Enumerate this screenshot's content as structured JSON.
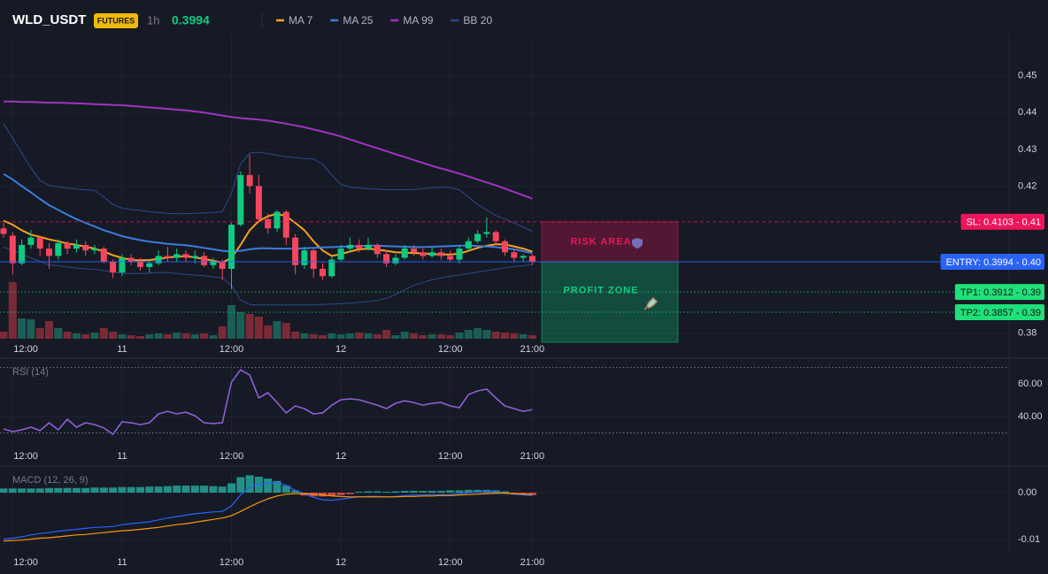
{
  "header": {
    "symbol": "WLD_USDT",
    "badge": "FUTURES",
    "interval": "1h",
    "price": 0.3994
  },
  "chart_data": [
    {
      "type": "candlestick",
      "categories": [
        null,
        "12:00",
        null,
        null,
        null,
        null,
        null,
        null,
        null,
        null,
        null,
        null,
        null,
        "11",
        null,
        null,
        null,
        null,
        null,
        null,
        null,
        null,
        null,
        null,
        null,
        "12:00",
        null,
        null,
        null,
        null,
        null,
        null,
        null,
        null,
        null,
        null,
        null,
        "12",
        null,
        null,
        null,
        null,
        null,
        null,
        null,
        null,
        null,
        null,
        null,
        "12:00",
        null,
        null,
        null,
        null,
        null,
        null,
        null,
        null,
        "21:00"
      ],
      "open": [
        0.4085,
        0.4065,
        0.399,
        0.404,
        0.406,
        0.403,
        0.401,
        0.4045,
        0.403,
        0.404,
        0.4025,
        0.403,
        0.3995,
        0.3965,
        0.4005,
        0.3995,
        0.398,
        0.399,
        0.401,
        0.4005,
        0.4015,
        0.4005,
        0.401,
        0.3985,
        0.3995,
        0.3975,
        0.4095,
        0.423,
        0.42,
        0.411,
        0.4085,
        0.413,
        0.406,
        0.3985,
        0.4025,
        0.3975,
        0.3955,
        0.4,
        0.403,
        0.404,
        0.403,
        0.404,
        0.4015,
        0.399,
        0.4005,
        0.403,
        0.402,
        0.401,
        0.402,
        0.401,
        0.4,
        0.403,
        0.405,
        0.407,
        0.4075,
        0.405,
        0.402,
        0.4005,
        0.401
      ],
      "high": [
        0.41,
        0.4075,
        0.4055,
        0.408,
        0.4065,
        0.4045,
        0.4055,
        0.405,
        0.4055,
        0.405,
        0.404,
        0.4035,
        0.4,
        0.4015,
        0.4015,
        0.4005,
        0.4,
        0.4025,
        0.4035,
        0.403,
        0.4025,
        0.4025,
        0.402,
        0.4005,
        0.4,
        0.41,
        0.424,
        0.4285,
        0.423,
        0.4125,
        0.4135,
        0.4135,
        0.407,
        0.4035,
        0.403,
        0.399,
        0.401,
        0.404,
        0.406,
        0.4055,
        0.406,
        0.4045,
        0.4025,
        0.4015,
        0.404,
        0.404,
        0.403,
        0.4035,
        0.403,
        0.4025,
        0.404,
        0.406,
        0.408,
        0.4115,
        0.408,
        0.4055,
        0.403,
        0.4015,
        0.4015
      ],
      "low": [
        0.406,
        0.396,
        0.3985,
        0.403,
        0.401,
        0.3975,
        0.4,
        0.4015,
        0.402,
        0.401,
        0.4015,
        0.399,
        0.395,
        0.3955,
        0.3985,
        0.397,
        0.3965,
        0.3985,
        0.3995,
        0.3995,
        0.3995,
        0.399,
        0.398,
        0.3975,
        0.3945,
        0.392,
        0.409,
        0.418,
        0.41,
        0.407,
        0.4075,
        0.404,
        0.396,
        0.3975,
        0.395,
        0.3945,
        0.395,
        0.3995,
        0.402,
        0.402,
        0.4025,
        0.4005,
        0.398,
        0.3985,
        0.4,
        0.401,
        0.4,
        0.4005,
        0.4,
        0.3995,
        0.399,
        0.4025,
        0.4045,
        0.406,
        0.404,
        0.401,
        0.3995,
        0.3995,
        0.3985
      ],
      "close": [
        0.407,
        0.399,
        0.404,
        0.406,
        0.403,
        0.401,
        0.4045,
        0.403,
        0.404,
        0.4025,
        0.403,
        0.3995,
        0.3965,
        0.4005,
        0.3995,
        0.398,
        0.399,
        0.401,
        0.4005,
        0.4015,
        0.4005,
        0.401,
        0.3985,
        0.3995,
        0.3975,
        0.4095,
        0.423,
        0.42,
        0.411,
        0.4085,
        0.413,
        0.406,
        0.3985,
        0.4025,
        0.3975,
        0.3955,
        0.4,
        0.403,
        0.404,
        0.403,
        0.404,
        0.4015,
        0.399,
        0.4005,
        0.403,
        0.402,
        0.401,
        0.402,
        0.401,
        0.4,
        0.403,
        0.405,
        0.407,
        0.4075,
        0.405,
        0.402,
        0.4005,
        0.401,
        0.3994
      ],
      "volume": [
        8,
        64,
        23,
        22,
        12,
        20,
        12,
        8,
        6,
        5,
        7,
        12,
        8,
        5,
        4,
        3,
        5,
        6,
        5,
        7,
        6,
        5,
        6,
        4,
        14,
        38,
        30,
        28,
        25,
        15,
        20,
        18,
        8,
        6,
        5,
        4,
        6,
        5,
        6,
        7,
        6,
        5,
        10,
        4,
        8,
        6,
        4,
        5,
        5,
        4,
        7,
        10,
        12,
        10,
        8,
        7,
        6,
        5,
        4
      ],
      "up_color": "#0ecb81",
      "down_color": "#f6465d",
      "volume_up_color": "#1b5e55",
      "volume_down_color": "#7a2a36",
      "series": [
        {
          "name": "MA 7",
          "color": "#f7a21b",
          "values": [
            0.4106,
            0.4095,
            0.408,
            0.4068,
            0.4062,
            0.4055,
            0.405,
            0.4044,
            0.404,
            0.4035,
            0.403,
            0.4022,
            0.4012,
            0.4005,
            0.3999,
            0.3998,
            0.3999,
            0.4002,
            0.4006,
            0.4008,
            0.401,
            0.4006,
            0.4002,
            0.3997,
            0.3992,
            0.4005,
            0.404,
            0.408,
            0.4105,
            0.4118,
            0.4125,
            0.4118,
            0.41,
            0.408,
            0.405,
            0.4025,
            0.401,
            0.4015,
            0.4022,
            0.4028,
            0.403,
            0.4027,
            0.4024,
            0.402,
            0.4019,
            0.4018,
            0.4017,
            0.4015,
            0.4014,
            0.4014,
            0.4016,
            0.4024,
            0.4032,
            0.4038,
            0.4042,
            0.4041,
            0.4036,
            0.403,
            0.4022
          ]
        },
        {
          "name": "MA 25",
          "color": "#3b7ddd",
          "values": [
            0.4233,
            0.4218,
            0.42,
            0.4183,
            0.4165,
            0.4148,
            0.4135,
            0.4122,
            0.411,
            0.41,
            0.409,
            0.408,
            0.4072,
            0.4064,
            0.4058,
            0.4053,
            0.4049,
            0.4046,
            0.4043,
            0.4041,
            0.4039,
            0.4036,
            0.4032,
            0.4028,
            0.4024,
            0.4022,
            0.4024,
            0.4028,
            0.4031,
            0.4031,
            0.403,
            0.403,
            0.403,
            0.4031,
            0.4032,
            0.4033,
            0.4034,
            0.4035,
            0.4036,
            0.4037,
            0.4038,
            0.4038,
            0.4037,
            0.4036,
            0.4035,
            0.4034,
            0.4034,
            0.4035,
            0.4036,
            0.4037,
            0.4038,
            0.4038,
            0.4037,
            0.4036,
            0.4034,
            0.4031,
            0.4028,
            0.4023,
            0.4018
          ]
        },
        {
          "name": "MA 99",
          "color": "#a232c2",
          "values": [
            0.443,
            0.443,
            0.4429,
            0.4429,
            0.4428,
            0.4427,
            0.4427,
            0.4426,
            0.4425,
            0.4424,
            0.4423,
            0.4422,
            0.4421,
            0.442,
            0.4418,
            0.4416,
            0.4414,
            0.4412,
            0.441,
            0.4408,
            0.4406,
            0.4403,
            0.44,
            0.4396,
            0.4392,
            0.4388,
            0.4385,
            0.4383,
            0.4381,
            0.4378,
            0.4374,
            0.437,
            0.4365,
            0.436,
            0.4354,
            0.4348,
            0.4342,
            0.4335,
            0.4327,
            0.4319,
            0.4311,
            0.4303,
            0.4295,
            0.4287,
            0.4279,
            0.4271,
            0.4263,
            0.4255,
            0.4248,
            0.4241,
            0.4234,
            0.4226,
            0.4218,
            0.421,
            0.4202,
            0.4193,
            0.4184,
            0.4175,
            0.4166
          ]
        },
        {
          "name": "BB 20",
          "color": "#2b4a8f",
          "upper": [
            0.437,
            0.433,
            0.429,
            0.425,
            0.4215,
            0.4202,
            0.4198,
            0.4195,
            0.4192,
            0.419,
            0.4188,
            0.417,
            0.415,
            0.414,
            0.4136,
            0.4134,
            0.413,
            0.4128,
            0.4126,
            0.4125,
            0.4125,
            0.4126,
            0.4127,
            0.4128,
            0.413,
            0.418,
            0.426,
            0.429,
            0.4292,
            0.4288,
            0.4284,
            0.428,
            0.4277,
            0.4275,
            0.4274,
            0.426,
            0.423,
            0.4205,
            0.4197,
            0.4195,
            0.4193,
            0.4192,
            0.419,
            0.419,
            0.419,
            0.4191,
            0.4193,
            0.4195,
            0.4197,
            0.4196,
            0.419,
            0.417,
            0.415,
            0.4135,
            0.412,
            0.411,
            0.41,
            0.4088,
            0.4077
          ],
          "lower": [
            0.4034,
            0.4025,
            0.4015,
            0.4005,
            0.3995,
            0.3986,
            0.3983,
            0.398,
            0.3977,
            0.3975,
            0.3974,
            0.397,
            0.3966,
            0.3963,
            0.3962,
            0.3962,
            0.3963,
            0.3965,
            0.3965,
            0.3962,
            0.396,
            0.3958,
            0.3956,
            0.3953,
            0.395,
            0.393,
            0.389,
            0.3878,
            0.3877,
            0.3877,
            0.3877,
            0.3877,
            0.3877,
            0.3877,
            0.3877,
            0.3878,
            0.3879,
            0.388,
            0.3882,
            0.3884,
            0.3886,
            0.3889,
            0.3895,
            0.3905,
            0.3918,
            0.393,
            0.3938,
            0.3945,
            0.395,
            0.3955,
            0.3958,
            0.3962,
            0.3966,
            0.397,
            0.3974,
            0.3978,
            0.3981,
            0.3984,
            0.3986
          ]
        }
      ],
      "ylim": [
        0.378,
        0.461
      ],
      "yticks": [
        0.38,
        0.42,
        0.43,
        0.44,
        0.45
      ],
      "grid": true,
      "levels": [
        {
          "value": 0.4103,
          "label": "SL: 0.4103 - 0.41",
          "color": "#f0145a",
          "text_color": "#ffffff",
          "style": "dashed"
        },
        {
          "value": 0.3994,
          "label": "ENTRY: 0.3994 - 0.40",
          "color": "#2962ff",
          "text_color": "#ffffff",
          "style": "solid"
        },
        {
          "value": 0.3912,
          "label": "TP1: 0.3912 - 0.39",
          "color": "#1fe07a",
          "text_color": "#0b1a12",
          "style": "dotted"
        },
        {
          "value": 0.3857,
          "label": "TP2: 0.3857 - 0.39",
          "color": "#1fe07a",
          "text_color": "#0b1a12",
          "style": "dotted"
        }
      ],
      "zones": [
        {
          "label": "RISK AREA",
          "from": 0.4103,
          "to": 0.3994,
          "color": "#f0145a"
        },
        {
          "label": "PROFIT ZONE",
          "from": 0.3994,
          "color": "#0ecb81"
        }
      ]
    },
    {
      "type": "line",
      "title": "RSI (14)",
      "color": "#8e5fd6",
      "values": [
        32.4,
        30.8,
        31.9,
        33.5,
        31.4,
        36.2,
        31.9,
        38.4,
        33.5,
        36.2,
        35.1,
        33.0,
        29.2,
        36.8,
        36.2,
        35.1,
        36.2,
        41.6,
        43.2,
        41.6,
        42.7,
        40.5,
        36.2,
        35.7,
        36.2,
        61.1,
        68.6,
        65.4,
        51.4,
        54.6,
        48.6,
        42.2,
        46.5,
        44.9,
        41.6,
        42.2,
        47.0,
        50.3,
        50.8,
        50.3,
        48.6,
        47.0,
        44.9,
        48.1,
        49.7,
        48.6,
        47.0,
        48.1,
        48.6,
        46.5,
        45.4,
        53.5,
        55.7,
        56.8,
        51.4,
        46.5,
        44.9,
        43.2,
        44.3
      ],
      "ylim": [
        21.6,
        74.1
      ],
      "yticks": [
        {
          "value": 60,
          "label": "60.00"
        },
        {
          "value": 40,
          "label": "40.00"
        }
      ],
      "hlines": [
        70,
        30
      ]
    },
    {
      "type": "combo",
      "title": "MACD (12, 26, 9)",
      "ylim": [
        -0.0128,
        0.0051
      ],
      "yticks": [
        {
          "value": 0,
          "label": "0.00"
        },
        {
          "value": -0.01,
          "label": "-0.01"
        }
      ],
      "series": [
        {
          "type": "bar",
          "up_color": "#26a69a",
          "down_color": "#ef5350",
          "values": [
            0.0009,
            0.0009,
            0.0009,
            0.0009,
            0.0009,
            0.001,
            0.001,
            0.001,
            0.001,
            0.001,
            0.0011,
            0.0011,
            0.0011,
            0.0012,
            0.0012,
            0.0012,
            0.0013,
            0.0013,
            0.0014,
            0.0015,
            0.0015,
            0.0015,
            0.0015,
            0.0014,
            0.0013,
            0.002,
            0.0033,
            0.0037,
            0.0034,
            0.003,
            0.0025,
            0.0015,
            0.0005,
            -0.0006,
            -0.0008,
            -0.0008,
            -0.0007,
            -0.0005,
            -0.0003,
            0.0002,
            0.0003,
            0.0003,
            0.0002,
            0.0003,
            0.0004,
            0.0004,
            0.0004,
            0.0004,
            0.0004,
            0.0005,
            0.0005,
            0.0006,
            0.0006,
            0.0006,
            0.0005,
            0.0003,
            -0.0003,
            -0.0004,
            -0.0005
          ]
        },
        {
          "type": "line",
          "color": "#2962ff",
          "values": [
            -0.0099,
            -0.0097,
            -0.0094,
            -0.009,
            -0.0087,
            -0.0085,
            -0.0082,
            -0.008,
            -0.0078,
            -0.0076,
            -0.0074,
            -0.0073,
            -0.0072,
            -0.0068,
            -0.0066,
            -0.0064,
            -0.0062,
            -0.0058,
            -0.0054,
            -0.0051,
            -0.0048,
            -0.0045,
            -0.0043,
            -0.0041,
            -0.004,
            -0.0028,
            -0.0005,
            0.0012,
            0.0018,
            0.002,
            0.0021,
            0.0016,
            0.0005,
            -0.0002,
            -0.001,
            -0.0015,
            -0.0016,
            -0.0014,
            -0.0011,
            -0.0009,
            -0.0008,
            -0.0008,
            -0.0009,
            -0.0008,
            -0.0006,
            -0.0005,
            -0.0005,
            -0.0004,
            -0.0004,
            -0.0004,
            -0.0002,
            0.0,
            0.0002,
            0.0003,
            0.0002,
            -0.0001,
            -0.0003,
            -0.0005,
            -0.0006
          ]
        },
        {
          "type": "line",
          "color": "#ff9800",
          "values": [
            -0.0103,
            -0.0102,
            -0.0101,
            -0.0099,
            -0.0097,
            -0.0096,
            -0.0094,
            -0.0092,
            -0.009,
            -0.0089,
            -0.0087,
            -0.0085,
            -0.0083,
            -0.0081,
            -0.008,
            -0.0078,
            -0.0076,
            -0.0074,
            -0.0071,
            -0.0068,
            -0.0066,
            -0.0063,
            -0.006,
            -0.0057,
            -0.0054,
            -0.0049,
            -0.004,
            -0.003,
            -0.0021,
            -0.0013,
            -0.0007,
            -0.0003,
            -0.0002,
            -0.0002,
            -0.0003,
            -0.0005,
            -0.0007,
            -0.0008,
            -0.0009,
            -0.0009,
            -0.0009,
            -0.0009,
            -0.0009,
            -0.0009,
            -0.0008,
            -0.0008,
            -0.0007,
            -0.0007,
            -0.0006,
            -0.0006,
            -0.0005,
            -0.0004,
            -0.0003,
            -0.0002,
            -0.0001,
            -0.0001,
            -0.0002,
            -0.0003,
            -0.0004
          ]
        }
      ]
    }
  ]
}
